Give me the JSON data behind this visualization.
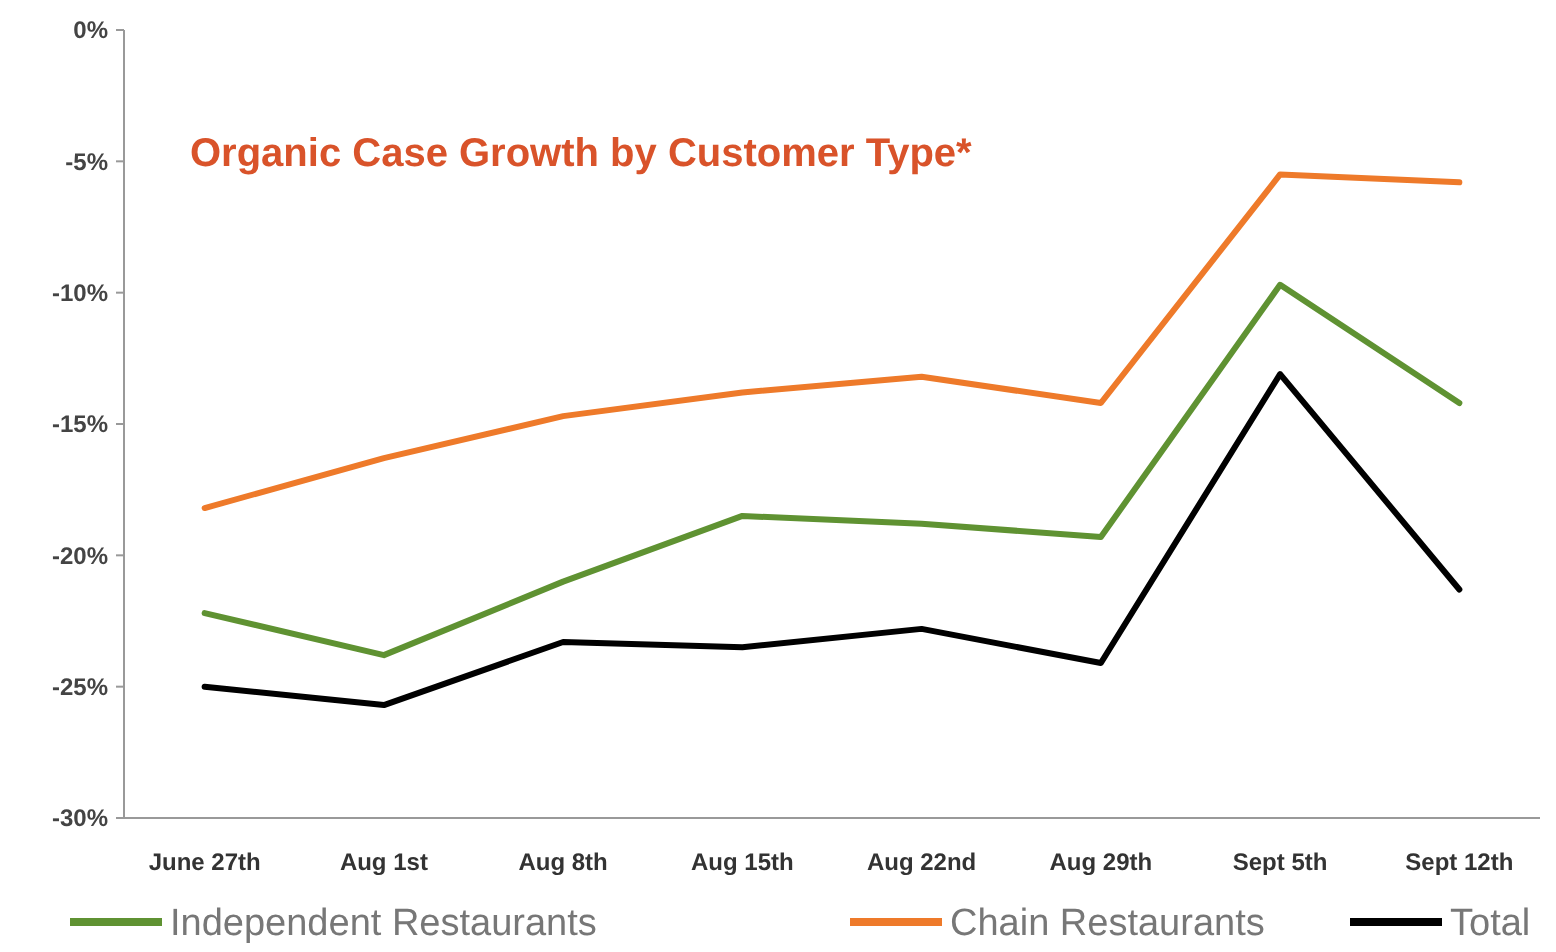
{
  "chart_data": {
    "type": "line",
    "title": "Organic Case Growth by Customer Type*",
    "categories": [
      "June 27th",
      "Aug 1st",
      "Aug 8th",
      "Aug 15th",
      "Aug 22nd",
      "Aug 29th",
      "Sept 5th",
      "Sept 12th"
    ],
    "series": [
      {
        "name": "Independent Restaurants",
        "color": "#5f9232",
        "values": [
          -22.2,
          -23.8,
          -21.0,
          -18.5,
          -18.8,
          -19.3,
          -9.7,
          -14.2
        ]
      },
      {
        "name": "Chain Restaurants",
        "color": "#ee7a2a",
        "values": [
          -18.2,
          -16.3,
          -14.7,
          -13.8,
          -13.2,
          -14.2,
          -5.5,
          -5.8
        ]
      },
      {
        "name": "Total",
        "color": "#000000",
        "values": [
          -25.0,
          -25.7,
          -23.3,
          -23.5,
          -22.8,
          -24.1,
          -13.1,
          -21.3
        ]
      }
    ],
    "ylim": [
      -30,
      0
    ],
    "yticks": [
      {
        "value": 0,
        "label": "0%"
      },
      {
        "value": -5,
        "label": "-5%"
      },
      {
        "value": -10,
        "label": "-10%"
      },
      {
        "value": -15,
        "label": "-15%"
      },
      {
        "value": -20,
        "label": "-20%"
      },
      {
        "value": -25,
        "label": "-25%"
      },
      {
        "value": -30,
        "label": "-30%"
      }
    ],
    "grid": false,
    "legend": "bottom",
    "marker": "none",
    "line_style": "solid"
  }
}
